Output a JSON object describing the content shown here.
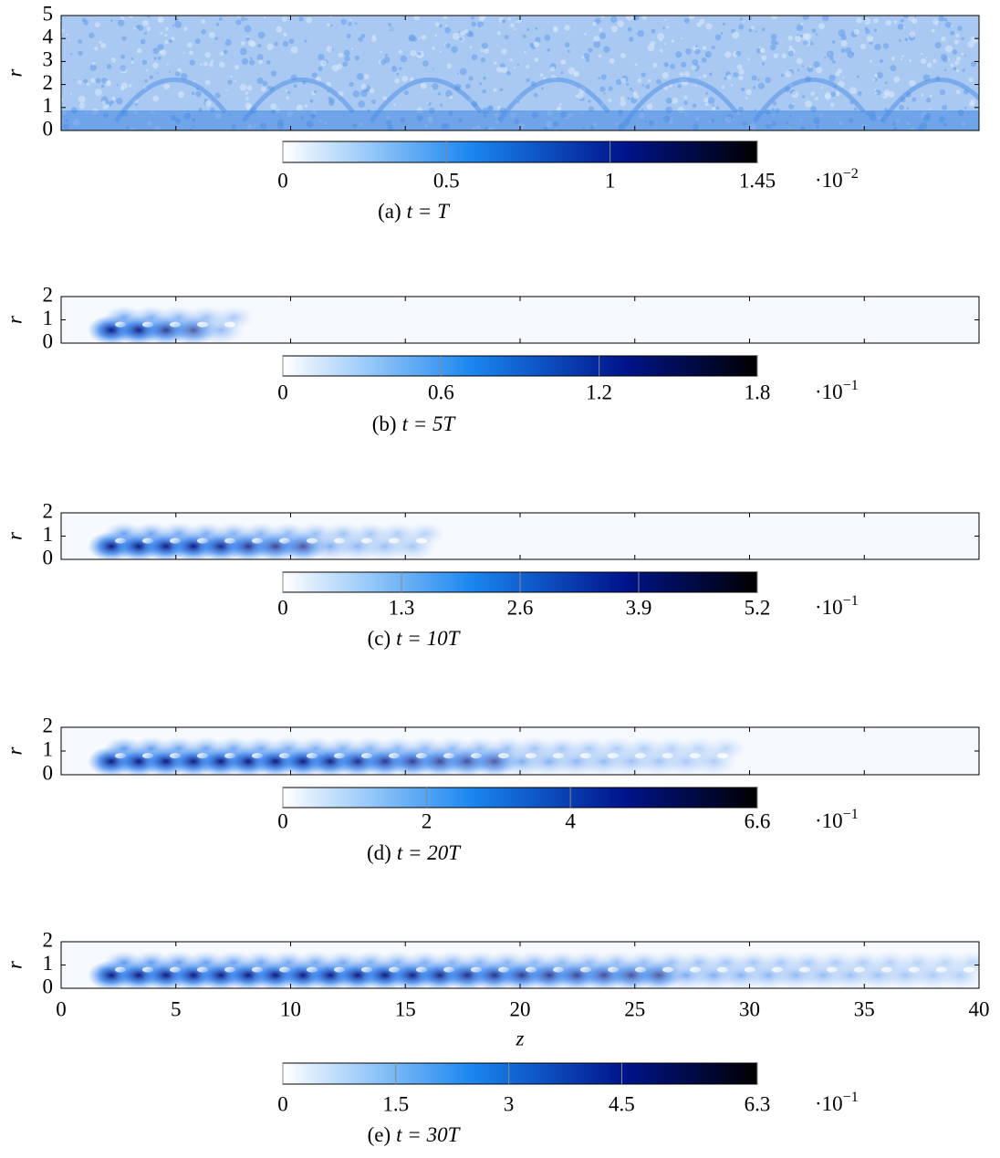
{
  "chart_data": [
    {
      "type": "heatmap",
      "ylabel": "r",
      "ylim": [
        0,
        5
      ],
      "yticks": [
        0,
        1,
        2,
        3,
        4,
        5
      ],
      "colorbar": {
        "lim": [
          0,
          1.45
        ],
        "ticks": [
          0,
          0.5,
          1,
          1.45
        ],
        "scale_label": "·10",
        "scale_exponent": "−2"
      },
      "caption_tag": "(a)",
      "caption_math": "t = T"
    },
    {
      "type": "heatmap",
      "ylabel": "r",
      "ylim": [
        0,
        2
      ],
      "yticks": [
        0,
        1,
        2
      ],
      "colorbar": {
        "lim": [
          0,
          1.8
        ],
        "ticks": [
          0,
          0.6,
          1.2,
          1.8
        ],
        "scale_label": "·10",
        "scale_exponent": "−1"
      },
      "caption_tag": "(b)",
      "caption_math": "t = 5T"
    },
    {
      "type": "heatmap",
      "ylabel": "r",
      "ylim": [
        0,
        2
      ],
      "yticks": [
        0,
        1,
        2
      ],
      "colorbar": {
        "lim": [
          0,
          5.2
        ],
        "ticks": [
          0,
          1.3,
          2.6,
          3.9,
          5.2
        ],
        "scale_label": "·10",
        "scale_exponent": "−1"
      },
      "caption_tag": "(c)",
      "caption_math": "t = 10T"
    },
    {
      "type": "heatmap",
      "ylabel": "r",
      "ylim": [
        0,
        2
      ],
      "yticks": [
        0,
        1,
        2
      ],
      "colorbar": {
        "lim": [
          0,
          6.6
        ],
        "ticks": [
          0,
          2,
          4,
          6.6
        ],
        "scale_label": "·10",
        "scale_exponent": "−1"
      },
      "caption_tag": "(d)",
      "caption_math": "t = 20T"
    },
    {
      "type": "heatmap",
      "ylabel": "r",
      "ylim": [
        0,
        2
      ],
      "yticks": [
        0,
        1,
        2
      ],
      "xlabel": "z",
      "xlim": [
        0,
        40
      ],
      "xticks": [
        0,
        5,
        10,
        15,
        20,
        25,
        30,
        35,
        40
      ],
      "colorbar": {
        "lim": [
          0,
          6.3
        ],
        "ticks": [
          0,
          1.5,
          3,
          4.5,
          6.3
        ],
        "scale_label": "·10",
        "scale_exponent": "−1"
      },
      "caption_tag": "(e)",
      "caption_math": "t = 30T"
    }
  ]
}
